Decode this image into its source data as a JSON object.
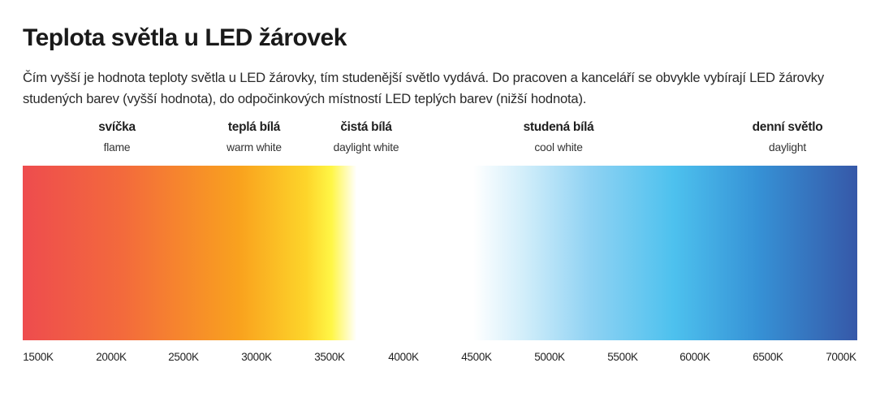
{
  "title": "Teplota světla u LED žárovek",
  "description": "Čím vyšší je hodnota teploty světla u LED žárovky, tím studenější světlo vydává. Do pracoven a kanceláří se obvykle vybírají LED žárovky studených barev (vyšší hodnota), do odpočinkových místností LED teplých barev (nižší hodnota).",
  "zones": [
    {
      "name": "svíčka",
      "sub": "flame"
    },
    {
      "name": "teplá bílá",
      "sub": "warm white"
    },
    {
      "name": "čistá bílá",
      "sub": "daylight white"
    },
    {
      "name": "studená bílá",
      "sub": "cool white"
    },
    {
      "name": "denní světlo",
      "sub": "daylight"
    }
  ],
  "scale": [
    "1500K",
    "2000K",
    "2500K",
    "3000K",
    "3500K",
    "4000K",
    "4500K",
    "5000K",
    "5500K",
    "6000K",
    "6500K",
    "7000K"
  ],
  "colors": {
    "flame": "#ee4c4e",
    "warm": "#f9a21e",
    "yellow": "#fff646",
    "neutral": "#ffffff",
    "cool": "#4dc1ee",
    "daylight": "#3658a8"
  }
}
